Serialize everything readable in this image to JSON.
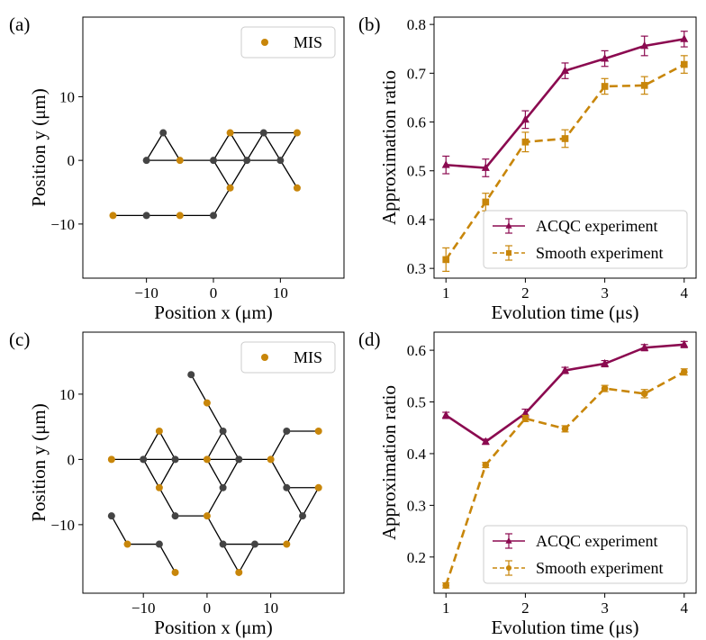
{
  "colors": {
    "node": "#444444",
    "mis": "#c8860a",
    "edge": "#000000",
    "acqc": "#8b0a50",
    "smooth": "#c8860a"
  },
  "chart_data": [
    {
      "id": "a",
      "type": "scatter",
      "panel_label": "(a)",
      "xlabel": "Position x (μm)",
      "ylabel": "Position y (μm)",
      "xlim": [
        -19.5,
        19.5
      ],
      "ylim": [
        -18.5,
        22.5
      ],
      "xticks": [
        -10,
        0,
        10
      ],
      "yticks": [
        -10,
        0,
        10
      ],
      "legend": [
        "MIS"
      ],
      "nodes": [
        {
          "x": -15,
          "y": -8.66,
          "mis": true
        },
        {
          "x": -10,
          "y": -8.66,
          "mis": false
        },
        {
          "x": -5,
          "y": -8.66,
          "mis": true
        },
        {
          "x": 0,
          "y": -8.66,
          "mis": false
        },
        {
          "x": -10,
          "y": 0,
          "mis": false
        },
        {
          "x": -7.5,
          "y": 4.33,
          "mis": false
        },
        {
          "x": -5,
          "y": 0,
          "mis": true
        },
        {
          "x": 0,
          "y": 0,
          "mis": false
        },
        {
          "x": 2.5,
          "y": 4.33,
          "mis": true
        },
        {
          "x": 2.5,
          "y": -4.33,
          "mis": true
        },
        {
          "x": 5,
          "y": 0,
          "mis": false
        },
        {
          "x": 7.5,
          "y": 4.33,
          "mis": false
        },
        {
          "x": 10,
          "y": 0,
          "mis": false
        },
        {
          "x": 12.5,
          "y": 4.33,
          "mis": true
        },
        {
          "x": 12.5,
          "y": -4.33,
          "mis": true
        }
      ],
      "edges": [
        [
          0,
          1
        ],
        [
          1,
          2
        ],
        [
          2,
          3
        ],
        [
          3,
          9
        ],
        [
          4,
          5
        ],
        [
          5,
          6
        ],
        [
          4,
          6
        ],
        [
          6,
          7
        ],
        [
          7,
          8
        ],
        [
          7,
          9
        ],
        [
          7,
          10
        ],
        [
          8,
          10
        ],
        [
          9,
          10
        ],
        [
          8,
          11
        ],
        [
          10,
          11
        ],
        [
          11,
          12
        ],
        [
          10,
          12
        ],
        [
          11,
          13
        ],
        [
          12,
          13
        ],
        [
          12,
          14
        ]
      ]
    },
    {
      "id": "b",
      "type": "line",
      "panel_label": "(b)",
      "xlabel": "Evolution time (μs)",
      "ylabel": "Approximation ratio",
      "xlim": [
        0.85,
        4.15
      ],
      "ylim": [
        0.28,
        0.815
      ],
      "xticks": [
        1,
        2,
        3,
        4
      ],
      "yticks": [
        0.3,
        0.4,
        0.5,
        0.6,
        0.7,
        0.8
      ],
      "x": [
        1,
        1.5,
        2,
        2.5,
        3,
        3.5,
        4
      ],
      "series": [
        {
          "name": "ACQC experiment",
          "values": [
            0.512,
            0.506,
            0.605,
            0.705,
            0.73,
            0.756,
            0.77
          ],
          "errors": [
            0.018,
            0.018,
            0.018,
            0.016,
            0.016,
            0.02,
            0.016
          ],
          "marker": "triangle",
          "style": "solid"
        },
        {
          "name": "Smooth experiment",
          "values": [
            0.318,
            0.436,
            0.559,
            0.566,
            0.673,
            0.675,
            0.718
          ],
          "errors": [
            0.024,
            0.018,
            0.02,
            0.018,
            0.016,
            0.018,
            0.018
          ],
          "marker": "square",
          "style": "dashed"
        }
      ],
      "legend_position": "lower-right"
    },
    {
      "id": "c",
      "type": "scatter",
      "panel_label": "(c)",
      "xlabel": "Position x (μm)",
      "ylabel": "Position y (μm)",
      "xlim": [
        -19.5,
        21.5
      ],
      "ylim": [
        -20.5,
        19.5
      ],
      "xticks": [
        -10,
        0,
        10
      ],
      "yticks": [
        -10,
        0,
        10
      ],
      "legend": [
        "MIS"
      ],
      "nodes": [
        {
          "x": -2.5,
          "y": 12.99,
          "mis": false
        },
        {
          "x": 0,
          "y": 8.66,
          "mis": true
        },
        {
          "x": 2.5,
          "y": 4.33,
          "mis": false
        },
        {
          "x": -7.5,
          "y": 4.33,
          "mis": true
        },
        {
          "x": -15,
          "y": 0,
          "mis": true
        },
        {
          "x": -10,
          "y": 0,
          "mis": false
        },
        {
          "x": -5,
          "y": 0,
          "mis": false
        },
        {
          "x": 0,
          "y": 0,
          "mis": true
        },
        {
          "x": 5,
          "y": 0,
          "mis": false
        },
        {
          "x": 10,
          "y": 0,
          "mis": true
        },
        {
          "x": 12.5,
          "y": 4.33,
          "mis": false
        },
        {
          "x": 17.5,
          "y": 4.33,
          "mis": true
        },
        {
          "x": -7.5,
          "y": -4.33,
          "mis": true
        },
        {
          "x": 2.5,
          "y": -4.33,
          "mis": false
        },
        {
          "x": 12.5,
          "y": -4.33,
          "mis": false
        },
        {
          "x": 17.5,
          "y": -4.33,
          "mis": true
        },
        {
          "x": -5,
          "y": -8.66,
          "mis": false
        },
        {
          "x": 0,
          "y": -8.66,
          "mis": true
        },
        {
          "x": 15,
          "y": -8.66,
          "mis": false
        },
        {
          "x": -15,
          "y": -8.66,
          "mis": false
        },
        {
          "x": -12.5,
          "y": -12.99,
          "mis": true
        },
        {
          "x": -7.5,
          "y": -12.99,
          "mis": false
        },
        {
          "x": 2.5,
          "y": -12.99,
          "mis": false
        },
        {
          "x": 7.5,
          "y": -12.99,
          "mis": false
        },
        {
          "x": 12.5,
          "y": -12.99,
          "mis": true
        },
        {
          "x": -5,
          "y": -17.32,
          "mis": true
        },
        {
          "x": 5,
          "y": -17.32,
          "mis": true
        }
      ],
      "edges": [
        [
          0,
          1
        ],
        [
          1,
          2
        ],
        [
          2,
          7
        ],
        [
          2,
          8
        ],
        [
          7,
          8
        ],
        [
          3,
          5
        ],
        [
          3,
          6
        ],
        [
          5,
          6
        ],
        [
          4,
          5
        ],
        [
          6,
          7
        ],
        [
          5,
          12
        ],
        [
          6,
          12
        ],
        [
          12,
          16
        ],
        [
          16,
          17
        ],
        [
          7,
          13
        ],
        [
          8,
          13
        ],
        [
          13,
          17
        ],
        [
          8,
          9
        ],
        [
          9,
          10
        ],
        [
          10,
          11
        ],
        [
          9,
          14
        ],
        [
          14,
          15
        ],
        [
          14,
          18
        ],
        [
          15,
          18
        ],
        [
          18,
          24
        ],
        [
          19,
          20
        ],
        [
          20,
          21
        ],
        [
          21,
          25
        ],
        [
          17,
          22
        ],
        [
          22,
          23
        ],
        [
          23,
          24
        ],
        [
          22,
          26
        ],
        [
          23,
          26
        ]
      ]
    },
    {
      "id": "d",
      "type": "line",
      "panel_label": "(d)",
      "xlabel": "Evolution time (μs)",
      "ylabel": "Approximation ratio",
      "xlim": [
        0.85,
        4.15
      ],
      "ylim": [
        0.13,
        0.635
      ],
      "xticks": [
        1,
        2,
        3,
        4
      ],
      "yticks": [
        0.2,
        0.3,
        0.4,
        0.5,
        0.6
      ],
      "x": [
        1,
        1.5,
        2,
        2.5,
        3,
        3.5,
        4
      ],
      "series": [
        {
          "name": "ACQC experiment",
          "values": [
            0.474,
            0.423,
            0.478,
            0.561,
            0.574,
            0.605,
            0.611
          ],
          "errors": [
            0.006,
            0.005,
            0.008,
            0.006,
            0.006,
            0.006,
            0.006
          ],
          "marker": "triangle",
          "style": "solid"
        },
        {
          "name": "Smooth experiment",
          "values": [
            0.145,
            0.378,
            0.468,
            0.448,
            0.526,
            0.516,
            0.558
          ],
          "errors": [
            0.005,
            0.005,
            0.006,
            0.006,
            0.006,
            0.008,
            0.006
          ],
          "marker": "circle",
          "style": "dashed"
        }
      ],
      "legend_position": "lower-right"
    }
  ]
}
